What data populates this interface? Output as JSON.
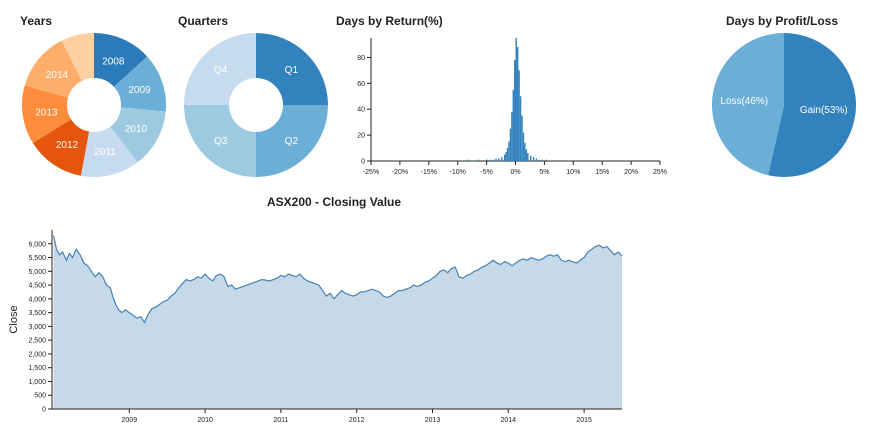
{
  "chart_data": [
    {
      "type": "pie",
      "donut": true,
      "title": "Years",
      "slices": [
        {
          "label": "2008",
          "value": 12.5,
          "color": "#2b7bba"
        },
        {
          "label": "2009",
          "value": 12.5,
          "color": "#6baed6"
        },
        {
          "label": "2010",
          "value": 12.5,
          "color": "#9ecae1"
        },
        {
          "label": "2011",
          "value": 12.5,
          "color": "#c6dbef"
        },
        {
          "label": "2012",
          "value": 12.5,
          "color": "#e6550d"
        },
        {
          "label": "2013",
          "value": 12.5,
          "color": "#fd8d3c"
        },
        {
          "label": "2014",
          "value": 12.5,
          "color": "#fdae6b"
        },
        {
          "label": "",
          "value": 7,
          "color": "#fdd0a2"
        }
      ]
    },
    {
      "type": "pie",
      "donut": true,
      "title": "Quarters",
      "slices": [
        {
          "label": "Q1",
          "value": 25,
          "color": "#3182bd"
        },
        {
          "label": "Q2",
          "value": 25,
          "color": "#6baed6"
        },
        {
          "label": "Q3",
          "value": 25,
          "color": "#9ecae1"
        },
        {
          "label": "Q4",
          "value": 25,
          "color": "#c6dbef"
        }
      ]
    },
    {
      "type": "bar",
      "title": "Days by Return(%)",
      "x_ticks": [
        "-25%",
        "-20%",
        "-15%",
        "-10%",
        "-5%",
        "0%",
        "5%",
        "10%",
        "15%",
        "20%",
        "25%"
      ],
      "x_range": [
        -25,
        25
      ],
      "y_ticks": [
        "0",
        "20",
        "40",
        "60",
        "80"
      ],
      "y_range": [
        0,
        95
      ],
      "bin_width": 0.25,
      "bins": [
        {
          "x": -8.25,
          "y": 1
        },
        {
          "x": -6.5,
          "y": 1
        },
        {
          "x": -5.0,
          "y": 1
        },
        {
          "x": -4.5,
          "y": 1
        },
        {
          "x": -4.0,
          "y": 1
        },
        {
          "x": -3.5,
          "y": 2
        },
        {
          "x": -3.0,
          "y": 2
        },
        {
          "x": -2.5,
          "y": 3
        },
        {
          "x": -2.0,
          "y": 5
        },
        {
          "x": -1.75,
          "y": 7
        },
        {
          "x": -1.5,
          "y": 10
        },
        {
          "x": -1.25,
          "y": 15
        },
        {
          "x": -1.0,
          "y": 25
        },
        {
          "x": -0.75,
          "y": 38
        },
        {
          "x": -0.5,
          "y": 55
        },
        {
          "x": -0.25,
          "y": 78
        },
        {
          "x": 0.0,
          "y": 95
        },
        {
          "x": 0.25,
          "y": 88
        },
        {
          "x": 0.5,
          "y": 70
        },
        {
          "x": 0.75,
          "y": 50
        },
        {
          "x": 1.0,
          "y": 35
        },
        {
          "x": 1.25,
          "y": 22
        },
        {
          "x": 1.5,
          "y": 14
        },
        {
          "x": 1.75,
          "y": 9
        },
        {
          "x": 2.0,
          "y": 6
        },
        {
          "x": 2.5,
          "y": 4
        },
        {
          "x": 3.0,
          "y": 3
        },
        {
          "x": 3.5,
          "y": 2
        },
        {
          "x": 4.0,
          "y": 1
        },
        {
          "x": 4.5,
          "y": 1
        },
        {
          "x": 5.25,
          "y": 1
        }
      ],
      "color": "#3182bd"
    },
    {
      "type": "pie",
      "title": "Days by Profit/Loss",
      "slices": [
        {
          "label": "Gain(53%)",
          "value": 53,
          "color": "#3182bd"
        },
        {
          "label": "Loss(46%)",
          "value": 46,
          "color": "#6baed6"
        }
      ]
    },
    {
      "type": "area",
      "title": "ASX200 - Closing Value",
      "ylabel": "Close",
      "x_range": [
        2007.98,
        2015.5
      ],
      "y_range": [
        0,
        6500
      ],
      "x_ticks": [
        "2009",
        "2010",
        "2011",
        "2012",
        "2013",
        "2014",
        "2015"
      ],
      "y_ticks": [
        "0",
        "500",
        "1,000",
        "1,500",
        "2,000",
        "2,500",
        "3,000",
        "3,500",
        "4,000",
        "4,500",
        "5,000",
        "5,500",
        "6,000"
      ],
      "fill": "#c6d9e9",
      "stroke": "#4682b4",
      "points": [
        [
          2008.0,
          6300
        ],
        [
          2008.04,
          5800
        ],
        [
          2008.08,
          5600
        ],
        [
          2008.12,
          5700
        ],
        [
          2008.17,
          5400
        ],
        [
          2008.21,
          5650
        ],
        [
          2008.25,
          5500
        ],
        [
          2008.3,
          5800
        ],
        [
          2008.35,
          5600
        ],
        [
          2008.4,
          5300
        ],
        [
          2008.45,
          5200
        ],
        [
          2008.5,
          5000
        ],
        [
          2008.55,
          4800
        ],
        [
          2008.6,
          4950
        ],
        [
          2008.65,
          4800
        ],
        [
          2008.7,
          4500
        ],
        [
          2008.75,
          4400
        ],
        [
          2008.78,
          4100
        ],
        [
          2008.82,
          3800
        ],
        [
          2008.86,
          3600
        ],
        [
          2008.9,
          3500
        ],
        [
          2008.95,
          3600
        ],
        [
          2009.0,
          3500
        ],
        [
          2009.05,
          3400
        ],
        [
          2009.1,
          3300
        ],
        [
          2009.15,
          3350
        ],
        [
          2009.2,
          3150
        ],
        [
          2009.25,
          3450
        ],
        [
          2009.3,
          3650
        ],
        [
          2009.35,
          3700
        ],
        [
          2009.4,
          3800
        ],
        [
          2009.45,
          3900
        ],
        [
          2009.5,
          3950
        ],
        [
          2009.55,
          4100
        ],
        [
          2009.6,
          4200
        ],
        [
          2009.65,
          4400
        ],
        [
          2009.7,
          4550
        ],
        [
          2009.75,
          4700
        ],
        [
          2009.8,
          4650
        ],
        [
          2009.85,
          4700
        ],
        [
          2009.9,
          4800
        ],
        [
          2009.95,
          4750
        ],
        [
          2010.0,
          4900
        ],
        [
          2010.05,
          4750
        ],
        [
          2010.1,
          4650
        ],
        [
          2010.15,
          4850
        ],
        [
          2010.2,
          4900
        ],
        [
          2010.25,
          4800
        ],
        [
          2010.3,
          4450
        ],
        [
          2010.35,
          4500
        ],
        [
          2010.4,
          4350
        ],
        [
          2010.45,
          4400
        ],
        [
          2010.5,
          4450
        ],
        [
          2010.55,
          4500
        ],
        [
          2010.6,
          4550
        ],
        [
          2010.65,
          4600
        ],
        [
          2010.7,
          4650
        ],
        [
          2010.75,
          4700
        ],
        [
          2010.8,
          4680
        ],
        [
          2010.85,
          4650
        ],
        [
          2010.9,
          4700
        ],
        [
          2010.95,
          4750
        ],
        [
          2011.0,
          4850
        ],
        [
          2011.05,
          4800
        ],
        [
          2011.1,
          4900
        ],
        [
          2011.15,
          4850
        ],
        [
          2011.2,
          4800
        ],
        [
          2011.25,
          4900
        ],
        [
          2011.3,
          4750
        ],
        [
          2011.35,
          4650
        ],
        [
          2011.4,
          4600
        ],
        [
          2011.45,
          4550
        ],
        [
          2011.5,
          4500
        ],
        [
          2011.55,
          4300
        ],
        [
          2011.6,
          4100
        ],
        [
          2011.65,
          4200
        ],
        [
          2011.7,
          4000
        ],
        [
          2011.75,
          4150
        ],
        [
          2011.8,
          4300
        ],
        [
          2011.85,
          4200
        ],
        [
          2011.9,
          4150
        ],
        [
          2011.95,
          4100
        ],
        [
          2012.0,
          4150
        ],
        [
          2012.05,
          4250
        ],
        [
          2012.1,
          4250
        ],
        [
          2012.15,
          4300
        ],
        [
          2012.2,
          4350
        ],
        [
          2012.25,
          4300
        ],
        [
          2012.3,
          4250
        ],
        [
          2012.35,
          4100
        ],
        [
          2012.4,
          4050
        ],
        [
          2012.45,
          4100
        ],
        [
          2012.5,
          4200
        ],
        [
          2012.55,
          4300
        ],
        [
          2012.6,
          4300
        ],
        [
          2012.65,
          4350
        ],
        [
          2012.7,
          4400
        ],
        [
          2012.75,
          4500
        ],
        [
          2012.8,
          4450
        ],
        [
          2012.85,
          4500
        ],
        [
          2012.9,
          4600
        ],
        [
          2012.95,
          4650
        ],
        [
          2013.0,
          4750
        ],
        [
          2013.05,
          4850
        ],
        [
          2013.1,
          5000
        ],
        [
          2013.15,
          5050
        ],
        [
          2013.2,
          4950
        ],
        [
          2013.25,
          5100
        ],
        [
          2013.3,
          5150
        ],
        [
          2013.35,
          4800
        ],
        [
          2013.4,
          4750
        ],
        [
          2013.45,
          4850
        ],
        [
          2013.5,
          4900
        ],
        [
          2013.55,
          5000
        ],
        [
          2013.6,
          5050
        ],
        [
          2013.65,
          5150
        ],
        [
          2013.7,
          5200
        ],
        [
          2013.75,
          5300
        ],
        [
          2013.8,
          5400
        ],
        [
          2013.85,
          5300
        ],
        [
          2013.9,
          5250
        ],
        [
          2013.95,
          5350
        ],
        [
          2014.0,
          5300
        ],
        [
          2014.05,
          5200
        ],
        [
          2014.1,
          5300
        ],
        [
          2014.15,
          5400
        ],
        [
          2014.2,
          5450
        ],
        [
          2014.25,
          5400
        ],
        [
          2014.3,
          5500
        ],
        [
          2014.35,
          5450
        ],
        [
          2014.4,
          5400
        ],
        [
          2014.45,
          5450
        ],
        [
          2014.5,
          5550
        ],
        [
          2014.55,
          5600
        ],
        [
          2014.6,
          5550
        ],
        [
          2014.65,
          5600
        ],
        [
          2014.7,
          5400
        ],
        [
          2014.75,
          5350
        ],
        [
          2014.8,
          5400
        ],
        [
          2014.85,
          5350
        ],
        [
          2014.9,
          5300
        ],
        [
          2014.95,
          5400
        ],
        [
          2015.0,
          5500
        ],
        [
          2015.05,
          5700
        ],
        [
          2015.1,
          5800
        ],
        [
          2015.15,
          5900
        ],
        [
          2015.2,
          5950
        ],
        [
          2015.25,
          5850
        ],
        [
          2015.3,
          5900
        ],
        [
          2015.35,
          5750
        ],
        [
          2015.4,
          5600
        ],
        [
          2015.45,
          5700
        ],
        [
          2015.5,
          5550
        ]
      ]
    }
  ]
}
